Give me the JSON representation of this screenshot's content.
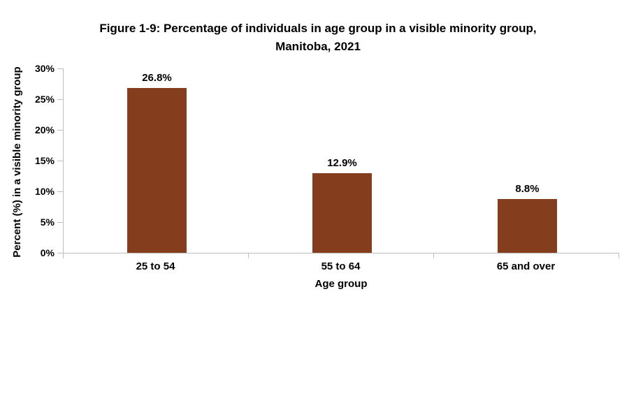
{
  "figure": {
    "title_line1": "Figure 1-9: Percentage of individuals in age group in a visible minority group,",
    "title_line2": "Manitoba, 2021"
  },
  "chart_data": {
    "type": "bar",
    "title": "Figure 1-9: Percentage of individuals in age group in a visible minority group, Manitoba, 2021",
    "categories": [
      "25 to 54",
      "55 to 64",
      "65 and over"
    ],
    "values": [
      26.8,
      12.9,
      8.8
    ],
    "value_labels": [
      "26.8%",
      "12.9%",
      "8.8%"
    ],
    "xlabel": "Age group",
    "ylabel": "Percent (%) in a visible minority group",
    "ylim": [
      0,
      30
    ],
    "y_tick_labels_top_to_bottom": [
      "30%",
      "25%",
      "20%",
      "15%",
      "10%",
      "5%",
      "0%"
    ],
    "grid": false,
    "legend": "none",
    "bar_color": "#843E1E",
    "axis_color": "#BFBFBF",
    "text_color": "#000000"
  }
}
